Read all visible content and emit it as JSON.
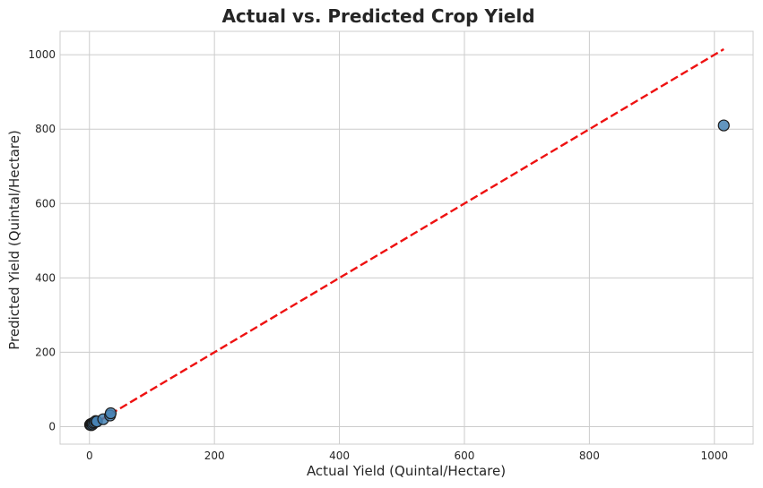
{
  "chart_data": {
    "type": "scatter",
    "title": "Actual vs. Predicted Crop Yield",
    "xlabel": "Actual Yield (Quintal/Hectare)",
    "ylabel": "Predicted Yield (Quintal/Hectare)",
    "xlim": [
      -47,
      1062
    ],
    "ylim": [
      -47,
      1063
    ],
    "xticks": [
      0,
      200,
      400,
      600,
      800,
      1000
    ],
    "yticks": [
      0,
      200,
      400,
      600,
      800,
      1000
    ],
    "grid": true,
    "series": [
      {
        "points": [
          {
            "x": 1,
            "y": 5
          },
          {
            "x": 2,
            "y": 7
          },
          {
            "x": 3,
            "y": 4
          },
          {
            "x": 4,
            "y": 8
          },
          {
            "x": 5,
            "y": 6
          },
          {
            "x": 6,
            "y": 10
          },
          {
            "x": 8,
            "y": 12
          },
          {
            "x": 10,
            "y": 15
          },
          {
            "x": 12,
            "y": 14
          },
          {
            "x": 22,
            "y": 20
          },
          {
            "x": 33,
            "y": 30
          },
          {
            "x": 34,
            "y": 36
          },
          {
            "x": 1015,
            "y": 810
          }
        ]
      }
    ],
    "reference_line": {
      "x": [
        1,
        1015
      ],
      "y": [
        1,
        1015
      ],
      "style": "dashed"
    },
    "colors": {
      "marker_fill": "#4682b4",
      "marker_edge": "#1a1a1a",
      "reference_line": "#ee1111",
      "grid": "#cccccc",
      "frame": "#cccccc",
      "text": "#262626"
    }
  }
}
